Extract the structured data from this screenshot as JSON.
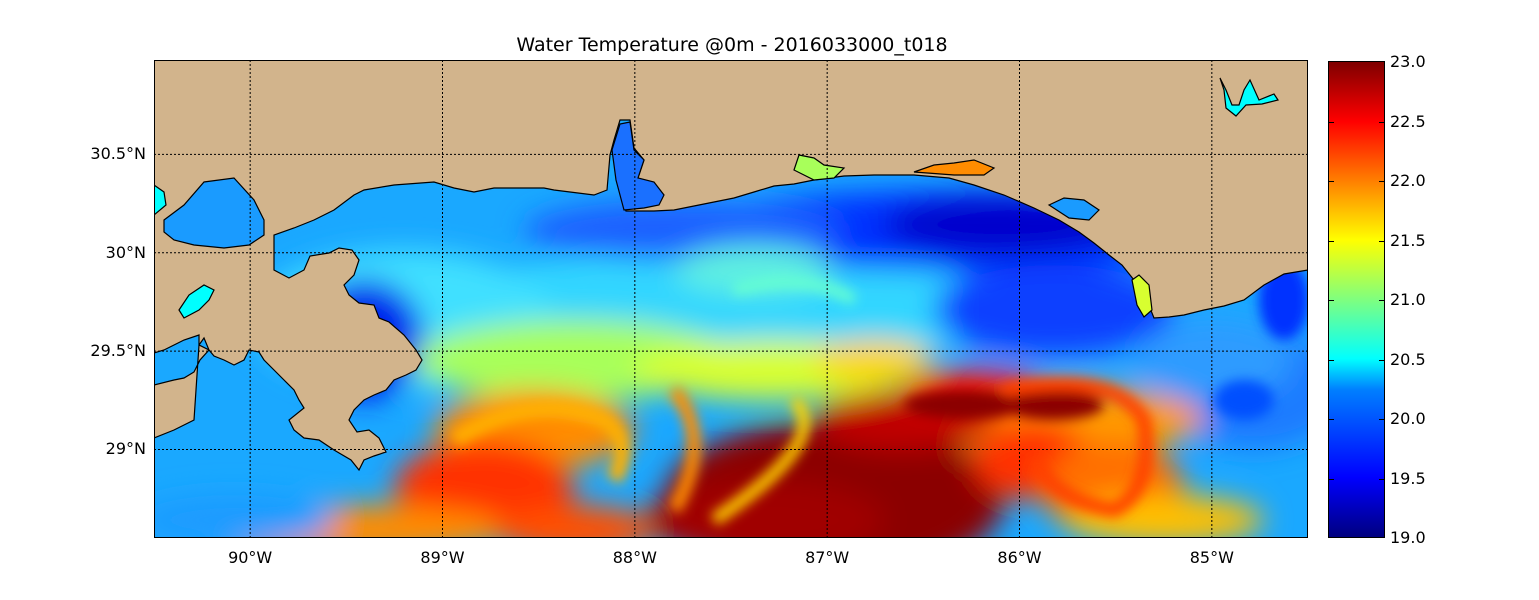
{
  "title": "Water Temperature @0m - 2016033000_t018",
  "colors": {
    "land": "#d2b48c",
    "coastline": "#000000",
    "inland_water": "#00ffff",
    "background": "#ffffff"
  },
  "chart_data": {
    "type": "heatmap",
    "title": "Water Temperature @0m - 2016033000_t018",
    "variable": "Water Temperature",
    "depth": "0m",
    "run": "2016033000_t018",
    "projection": "cylindrical",
    "x_range_lon": [
      -90.5,
      -84.5
    ],
    "y_range_lat": [
      28.55,
      30.98
    ],
    "grid": true,
    "grid_style": "dotted",
    "lon_ticks": [
      {
        "value": -90,
        "label": "90°W"
      },
      {
        "value": -89,
        "label": "89°W"
      },
      {
        "value": -88,
        "label": "88°W"
      },
      {
        "value": -87,
        "label": "87°W"
      },
      {
        "value": -86,
        "label": "86°W"
      },
      {
        "value": -85,
        "label": "85°W"
      }
    ],
    "lat_ticks": [
      {
        "value": 30.5,
        "label": "30.5°N"
      },
      {
        "value": 30.0,
        "label": "30°N"
      },
      {
        "value": 29.5,
        "label": "29.5°N"
      },
      {
        "value": 29.0,
        "label": "29°N"
      }
    ],
    "colormap": "jet",
    "colorbar": {
      "range": [
        19.0,
        23.0
      ],
      "ticks": [
        "19.0",
        "19.5",
        "20.0",
        "20.5",
        "21.0",
        "21.5",
        "22.0",
        "22.5",
        "23.0"
      ]
    },
    "temperature_features": [
      {
        "region": "Open Gulf south of 29.2°N, 87.5°W–86.4°W",
        "value": 23.0
      },
      {
        "region": "Warm eddy ring near 29.2°N, 86.5°W–85.8°W",
        "value": 22.6
      },
      {
        "region": "Warm filament near 29.0°N, 89.0°W–88.2°W",
        "value": 22.5
      },
      {
        "region": "Cold coastal band near 30.2°N, 87.0°W–85.7°W",
        "value": 19.2
      },
      {
        "region": "Mississippi delta east shore near 29.6°N, 89.3°W",
        "value": 19.4
      },
      {
        "region": "Shelf waters near 29.9°N, 88.5°W",
        "value": 20.2
      },
      {
        "region": "Southeast shelf near 29.4°N, 85.3°W",
        "value": 19.8
      },
      {
        "region": "Mid-shelf band near 29.4°N, 88.0°W",
        "value": 21.2
      }
    ]
  }
}
